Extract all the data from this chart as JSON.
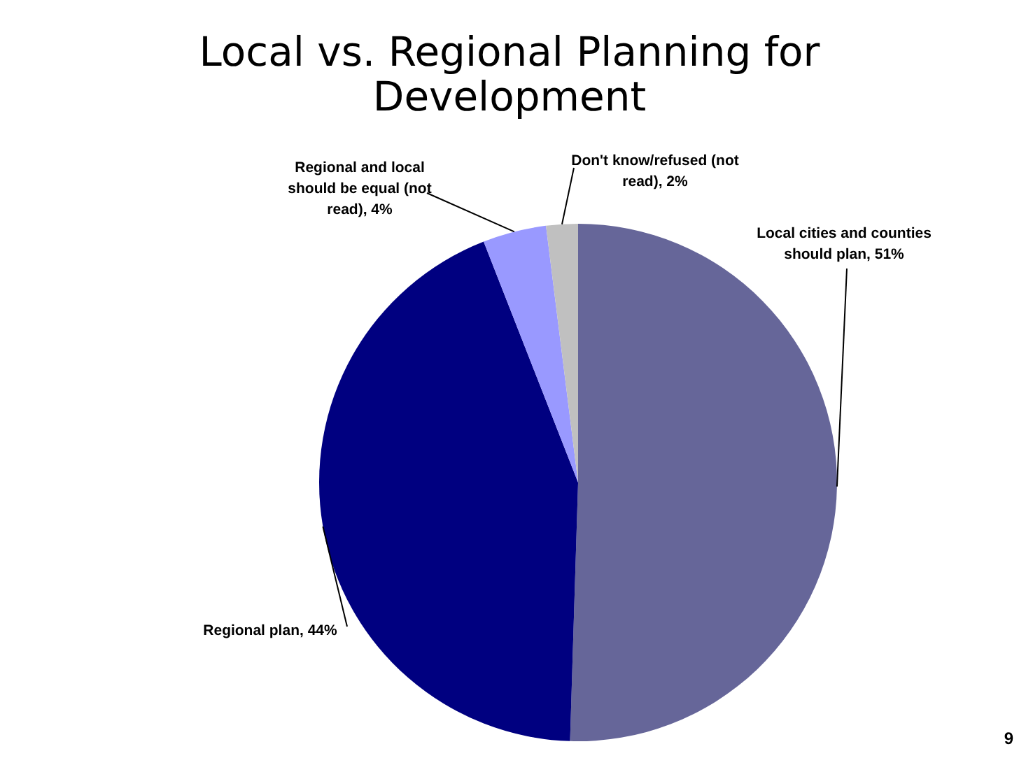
{
  "chart_data": {
    "type": "pie",
    "title": "Local vs. Regional Planning for Development",
    "categories": [
      "Local cities and counties should plan",
      "Regional plan",
      "Regional and local should be equal (not read)",
      "Don't know/refused (not read)"
    ],
    "values": [
      51,
      44,
      4,
      2
    ],
    "colors": [
      "#666699",
      "#000080",
      "#9999ff",
      "#c0c0c0"
    ],
    "value_labels": [
      ", 51%",
      ", 44%",
      ", 4%",
      ", 2%"
    ],
    "annotations": [
      "9"
    ]
  }
}
